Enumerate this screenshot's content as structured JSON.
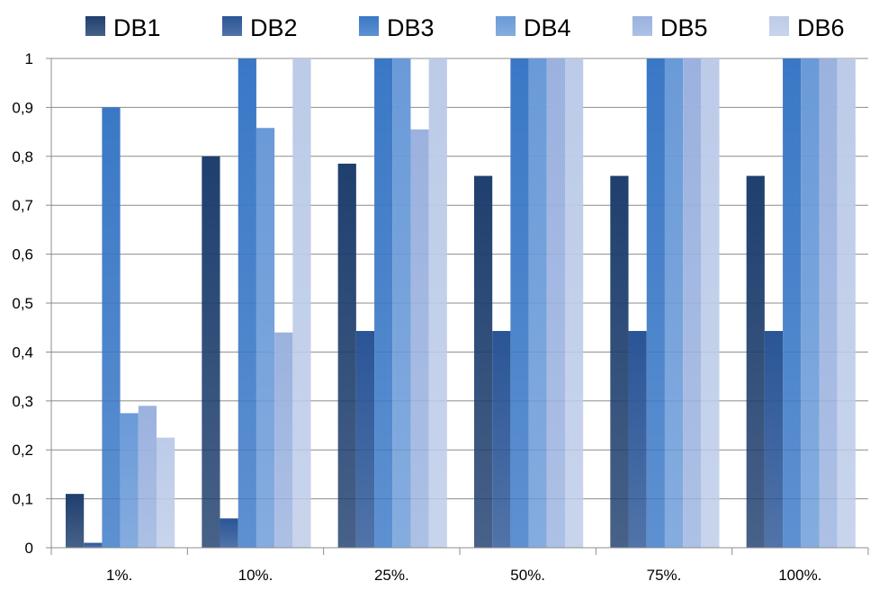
{
  "chart_data": {
    "type": "bar",
    "categories": [
      "1%.",
      "10%.",
      "25%.",
      "50%.",
      "75%.",
      "100%."
    ],
    "series": [
      {
        "name": "DB1",
        "color": "#1f3f6e",
        "values": [
          0.11,
          0.8,
          0.785,
          0.76,
          0.76,
          0.76
        ]
      },
      {
        "name": "DB2",
        "color": "#2a5596",
        "values": [
          0.01,
          0.06,
          0.443,
          0.443,
          0.443,
          0.443
        ]
      },
      {
        "name": "DB3",
        "color": "#3a78c6",
        "values": [
          0.9,
          1.0,
          1.0,
          1.0,
          1.0,
          1.0
        ]
      },
      {
        "name": "DB4",
        "color": "#6a9ad8",
        "values": [
          0.275,
          0.858,
          1.0,
          1.0,
          1.0,
          1.0
        ]
      },
      {
        "name": "DB5",
        "color": "#9bb2df",
        "values": [
          0.29,
          0.44,
          0.855,
          1.0,
          1.0,
          1.0
        ]
      },
      {
        "name": "DB6",
        "color": "#bccbe8",
        "values": [
          0.225,
          1.0,
          1.0,
          1.0,
          1.0,
          1.0
        ]
      }
    ],
    "y_ticks": [
      "0",
      "0,1",
      "0,2",
      "0,3",
      "0,4",
      "0,5",
      "0,6",
      "0,7",
      "0,8",
      "0,9",
      "1"
    ],
    "ylim": [
      0,
      1
    ],
    "grid": true,
    "legend_position": "top"
  }
}
